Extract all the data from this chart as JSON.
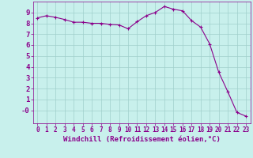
{
  "x": [
    0,
    1,
    2,
    3,
    4,
    5,
    6,
    7,
    8,
    9,
    10,
    11,
    12,
    13,
    14,
    15,
    16,
    17,
    18,
    19,
    20,
    21,
    22,
    23
  ],
  "y": [
    8.5,
    8.7,
    8.55,
    8.35,
    8.1,
    8.1,
    8.0,
    8.0,
    7.9,
    7.85,
    7.5,
    8.15,
    8.7,
    9.0,
    9.55,
    9.3,
    9.15,
    8.25,
    7.65,
    6.1,
    3.5,
    1.7,
    -0.2,
    -0.55
  ],
  "line_color": "#8B008B",
  "marker": "+",
  "markersize": 3,
  "linewidth": 0.8,
  "background_color": "#c8f0ec",
  "grid_color": "#a0d0cc",
  "xlabel": "Windchill (Refroidissement éolien,°C)",
  "xlabel_fontsize": 6.5,
  "xlabel_color": "#8B008B",
  "ytick_labels": [
    "-0",
    "1",
    "2",
    "3",
    "4",
    "5",
    "6",
    "7",
    "8",
    "9"
  ],
  "ylim": [
    -1.2,
    10.0
  ],
  "xlim": [
    -0.5,
    23.5
  ],
  "xtick_fontsize": 5.5,
  "ytick_fontsize": 6.5,
  "tick_color": "#8B008B"
}
